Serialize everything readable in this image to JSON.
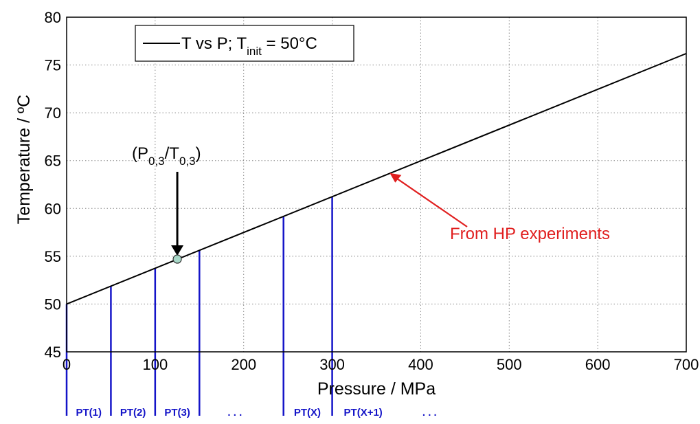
{
  "chart_data": {
    "type": "line",
    "xlabel": "Pressure / MPa",
    "ylabel": "Temperature / ºC",
    "xlim": [
      0,
      700
    ],
    "ylim": [
      45,
      80
    ],
    "xticks": [
      0,
      100,
      200,
      300,
      400,
      500,
      600,
      700
    ],
    "yticks": [
      45,
      50,
      55,
      60,
      65,
      70,
      75,
      80
    ],
    "grid": true,
    "legend_position": "top-left",
    "series": [
      {
        "legend_main": "T vs P; T",
        "legend_sub": "init",
        "legend_tail": " = 50°C",
        "color": "#000000",
        "x": [
          0,
          700
        ],
        "y": [
          50,
          76.2
        ]
      }
    ],
    "marker_point": {
      "x": 125,
      "y": 54.7,
      "label_main": "(P",
      "label_sub1": "0,3",
      "label_mid": "/T",
      "label_sub2": "0,3",
      "label_end": ")",
      "fill": "#a8d8c8"
    },
    "annotation": {
      "text": "From HP experiments",
      "color": "#e01e1e",
      "arrow_target": {
        "x": 365,
        "y": 63.7
      }
    },
    "vertical_lines": {
      "color": "#1414c8",
      "x": [
        0,
        50,
        100,
        150,
        245,
        300
      ]
    },
    "pt_labels": [
      {
        "text": "PT(1)",
        "x": 25
      },
      {
        "text": "PT(2)",
        "x": 75
      },
      {
        "text": "PT(3)",
        "x": 125
      },
      {
        "text": ". . .",
        "x": 190
      },
      {
        "text": "PT(X)",
        "x": 272
      },
      {
        "text": "PT(X+1)",
        "x": 335
      },
      {
        "text": ". . .",
        "x": 410
      }
    ]
  }
}
